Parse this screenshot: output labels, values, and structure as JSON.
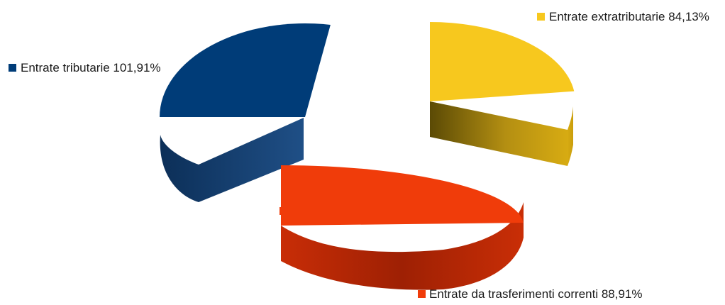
{
  "chart_data": {
    "type": "pie",
    "style": "3d-exploded",
    "series": [
      {
        "label": "Entrate tributarie 101,91%",
        "value": 101.91,
        "color": "#003c78"
      },
      {
        "label": "Entrate extratributarie 84,13%",
        "value": 84.13,
        "color": "#f7c81e"
      },
      {
        "label": "Entrate da trasferimenti correnti 88,91%",
        "value": 88.91,
        "color": "#f03c0a"
      }
    ],
    "legend": "inline-labels"
  }
}
